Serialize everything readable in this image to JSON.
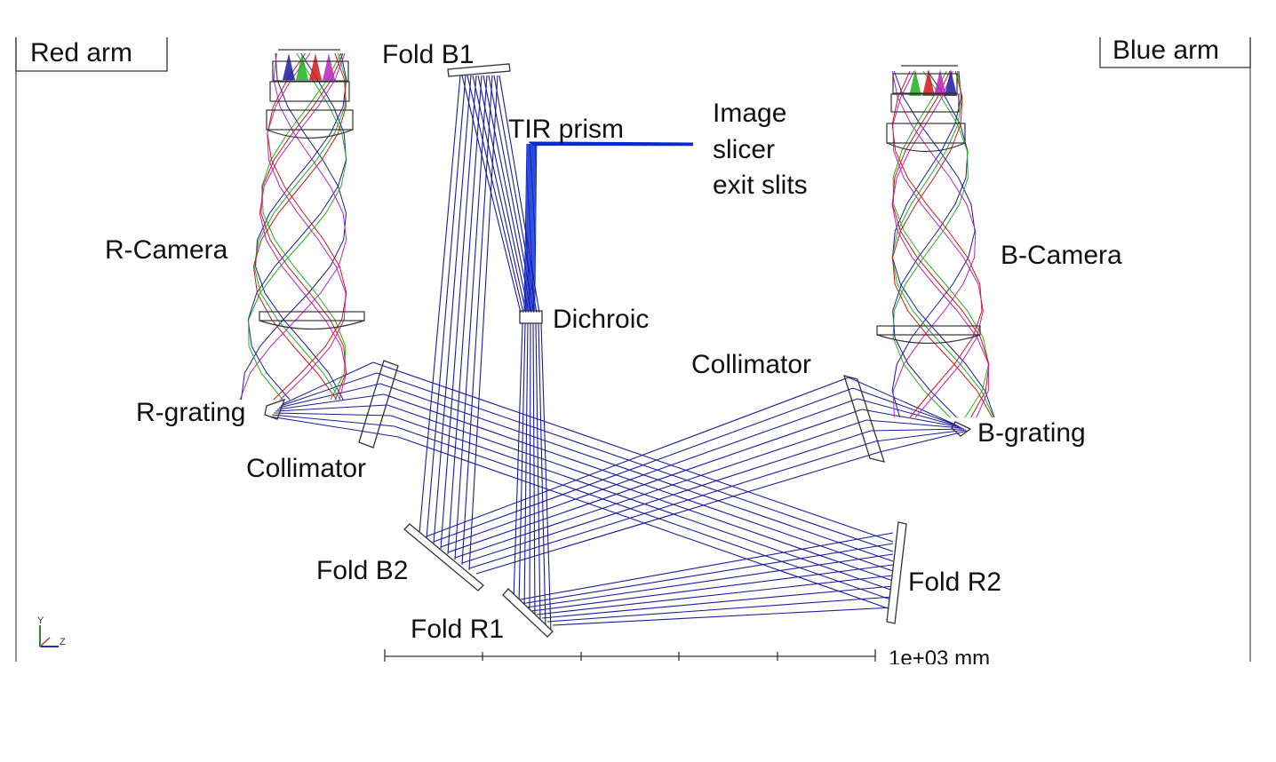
{
  "panels": {
    "red_arm": "Red arm",
    "blue_arm": "Blue arm"
  },
  "labels": {
    "fold_b1": "Fold B1",
    "tir_prism": "TIR prism",
    "image_slicer_line1": "Image",
    "image_slicer_line2": "slicer",
    "image_slicer_line3": "exit slits",
    "r_camera": "R-Camera",
    "b_camera": "B-Camera",
    "dichroic": "Dichroic",
    "collimator_blue": "Collimator",
    "r_grating": "R-grating",
    "b_grating": "B-grating",
    "collimator_red": "Collimator",
    "fold_b2": "Fold B2",
    "fold_r2": "Fold R2",
    "fold_r1": "Fold R1"
  },
  "scale_bar": {
    "label": "1e+03 mm"
  },
  "axis_triad": {
    "y": "Y",
    "z": "Z"
  },
  "colors": {
    "ray_blue": "#1a1aa0",
    "slit_blue": "#0a2ad0",
    "ray_colors": [
      "#1a1aa0",
      "#1fb31f",
      "#d01818",
      "#c020c0"
    ],
    "frame": "#444444"
  }
}
